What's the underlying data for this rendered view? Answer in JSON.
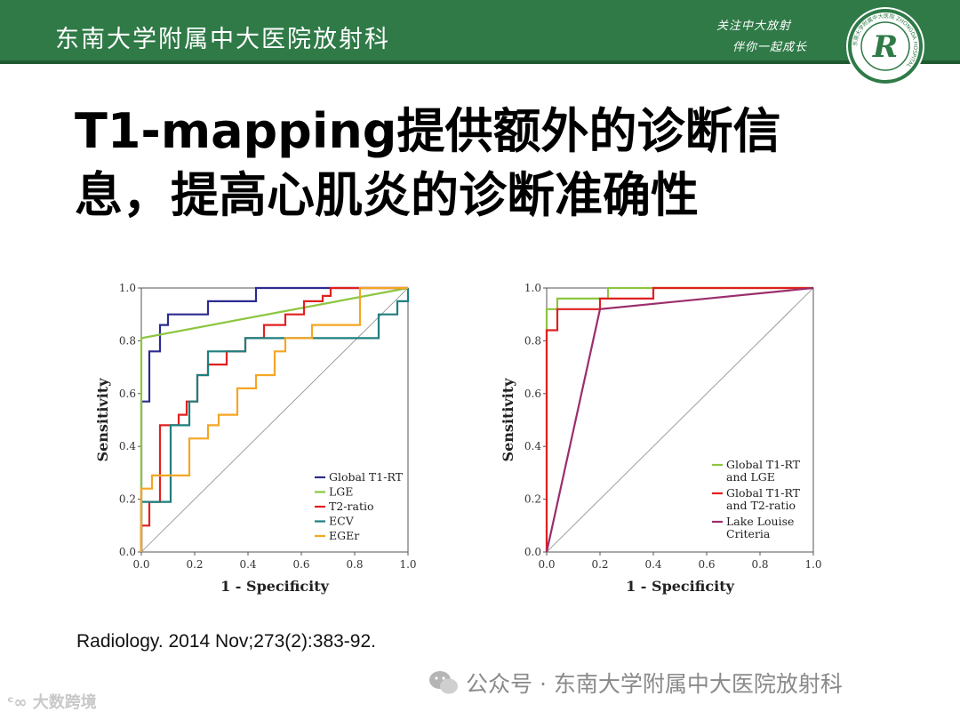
{
  "header": {
    "title": "东南大学附属中大医院放射科",
    "slogan_line1": "关注中大放射",
    "slogan_line2": "伴你一起成长",
    "logo_letter": "R",
    "logo_ring_text": "东南大学附属中大医院 ZHONGDA HOSPITAL"
  },
  "slide": {
    "title_line1": "T1-mapping提供额外的诊断信",
    "title_line2": "息，提高心肌炎的诊断准确性",
    "citation": "Radiology. 2014 Nov;273(2):383-92."
  },
  "watermark": {
    "text": "公众号 · 东南大学附属中大医院放射科"
  },
  "corner_mark": {
    "text": "大数跨境"
  },
  "colors": {
    "banner": "#2f7a47",
    "global_t1_rt": "#2b2b8f",
    "lge": "#8cc63f",
    "t2_ratio": "#e02020",
    "ecv": "#1f7f7f",
    "eger": "#f5a623",
    "lake_louise": "#9b2d6b",
    "diagonal": "#888888"
  },
  "chart_data": [
    {
      "type": "line",
      "xlabel": "1 - Specificity",
      "ylabel": "Sensitivity",
      "xlim": [
        0,
        1
      ],
      "ylim": [
        0,
        1
      ],
      "xticks": [
        "0.0",
        "0.2",
        "0.4",
        "0.6",
        "0.8",
        "1.0"
      ],
      "yticks": [
        "0.0",
        "0.2",
        "0.4",
        "0.6",
        "0.8",
        "1.0"
      ],
      "diagonal": true,
      "legend_position": "bottom-right",
      "series": [
        {
          "name": "Global T1-RT",
          "color": "#2b2b8f",
          "step": true,
          "x": [
            0,
            0,
            0.03,
            0.03,
            0.07,
            0.07,
            0.1,
            0.1,
            0.25,
            0.25,
            0.43,
            0.43,
            1.0
          ],
          "y": [
            0,
            0.57,
            0.57,
            0.76,
            0.76,
            0.86,
            0.86,
            0.9,
            0.9,
            0.95,
            0.95,
            1.0,
            1.0
          ]
        },
        {
          "name": "LGE",
          "color": "#8cc63f",
          "step": false,
          "x": [
            0,
            0,
            1.0
          ],
          "y": [
            0,
            0.81,
            1.0
          ]
        },
        {
          "name": "T2-ratio",
          "color": "#e02020",
          "step": true,
          "x": [
            0,
            0,
            0.03,
            0.03,
            0.07,
            0.07,
            0.14,
            0.14,
            0.17,
            0.17,
            0.21,
            0.21,
            0.25,
            0.25,
            0.32,
            0.32,
            0.39,
            0.39,
            0.46,
            0.46,
            0.54,
            0.54,
            0.61,
            0.61,
            0.68,
            0.68,
            0.71,
            0.71,
            1.0
          ],
          "y": [
            0,
            0.1,
            0.1,
            0.19,
            0.19,
            0.48,
            0.48,
            0.52,
            0.52,
            0.57,
            0.57,
            0.67,
            0.67,
            0.71,
            0.71,
            0.76,
            0.76,
            0.81,
            0.81,
            0.86,
            0.86,
            0.9,
            0.9,
            0.95,
            0.95,
            0.97,
            0.97,
            1.0,
            1.0
          ]
        },
        {
          "name": "ECV",
          "color": "#1f7f7f",
          "step": true,
          "x": [
            0,
            0,
            0.11,
            0.11,
            0.18,
            0.18,
            0.21,
            0.21,
            0.25,
            0.25,
            0.39,
            0.39,
            0.61,
            0.61,
            0.89,
            0.89,
            0.96,
            0.96,
            1.0,
            1.0
          ],
          "y": [
            0,
            0.19,
            0.19,
            0.48,
            0.48,
            0.57,
            0.57,
            0.67,
            0.67,
            0.76,
            0.76,
            0.81,
            0.81,
            0.81,
            0.81,
            0.9,
            0.9,
            0.95,
            0.95,
            1.0
          ]
        },
        {
          "name": "EGEr",
          "color": "#f5a623",
          "step": true,
          "x": [
            0,
            0,
            0.04,
            0.04,
            0.18,
            0.18,
            0.25,
            0.25,
            0.29,
            0.29,
            0.36,
            0.36,
            0.43,
            0.43,
            0.5,
            0.5,
            0.54,
            0.54,
            0.64,
            0.64,
            0.82,
            0.82,
            1.0
          ],
          "y": [
            0,
            0.24,
            0.24,
            0.29,
            0.29,
            0.43,
            0.43,
            0.48,
            0.48,
            0.52,
            0.52,
            0.62,
            0.62,
            0.67,
            0.67,
            0.76,
            0.76,
            0.81,
            0.81,
            0.86,
            0.86,
            1.0,
            1.0
          ]
        }
      ]
    },
    {
      "type": "line",
      "xlabel": "1 - Specificity",
      "ylabel": "Sensitivity",
      "xlim": [
        0,
        1
      ],
      "ylim": [
        0,
        1
      ],
      "xticks": [
        "0.0",
        "0.2",
        "0.4",
        "0.6",
        "0.8",
        "1.0"
      ],
      "yticks": [
        "0.0",
        "0.2",
        "0.4",
        "0.6",
        "0.8",
        "1.0"
      ],
      "diagonal": true,
      "legend_position": "bottom-right",
      "series": [
        {
          "name": "Global T1-RT and LGE",
          "label_lines": [
            "Global T1-RT",
            "and LGE"
          ],
          "color": "#8cc63f",
          "step": true,
          "x": [
            0,
            0,
            0.04,
            0.04,
            0.23,
            0.23,
            1.0
          ],
          "y": [
            0,
            0.92,
            0.92,
            0.96,
            0.96,
            1.0,
            1.0
          ]
        },
        {
          "name": "Global T1-RT and T2-ratio",
          "label_lines": [
            "Global T1-RT",
            "and T2-ratio"
          ],
          "color": "#e02020",
          "step": true,
          "x": [
            0,
            0,
            0.04,
            0.04,
            0.2,
            0.2,
            0.4,
            0.4,
            1.0
          ],
          "y": [
            0,
            0.84,
            0.84,
            0.92,
            0.92,
            0.96,
            0.96,
            1.0,
            1.0
          ]
        },
        {
          "name": "Lake Louise Criteria",
          "label_lines": [
            "Lake Louise",
            "Criteria"
          ],
          "color": "#9b2d6b",
          "step": false,
          "x": [
            0,
            0.2,
            1.0
          ],
          "y": [
            0,
            0.92,
            1.0
          ]
        }
      ]
    }
  ]
}
